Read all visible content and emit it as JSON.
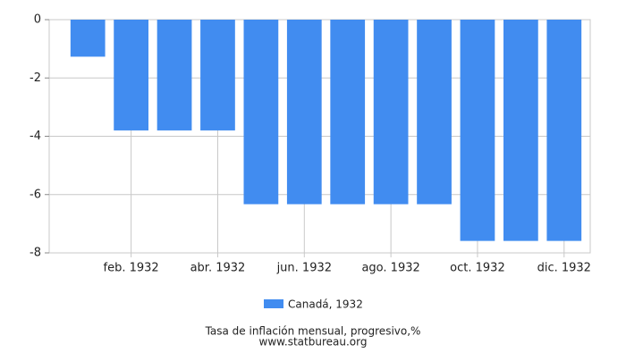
{
  "chart_data": {
    "type": "bar",
    "title": "Tasa de inflación mensual, progresivo,%",
    "subtitle": "www.statbureau.org",
    "categories": [
      null,
      "feb. 1932",
      null,
      "abr. 1932",
      null,
      "jun. 1932",
      null,
      "ago. 1932",
      null,
      "oct. 1932",
      null,
      "dic. 1932"
    ],
    "series": [
      {
        "name": "Canadá, 1932",
        "color": "#418cf0",
        "values": [
          -1.27,
          -3.8,
          -3.8,
          -3.8,
          -6.33,
          -6.33,
          -6.33,
          -6.33,
          -6.33,
          -7.59,
          -7.59,
          -7.59
        ]
      }
    ],
    "ylim": [
      -8,
      0
    ],
    "yticks": [
      0,
      -2,
      -4,
      -6,
      -8
    ],
    "grid": true
  }
}
